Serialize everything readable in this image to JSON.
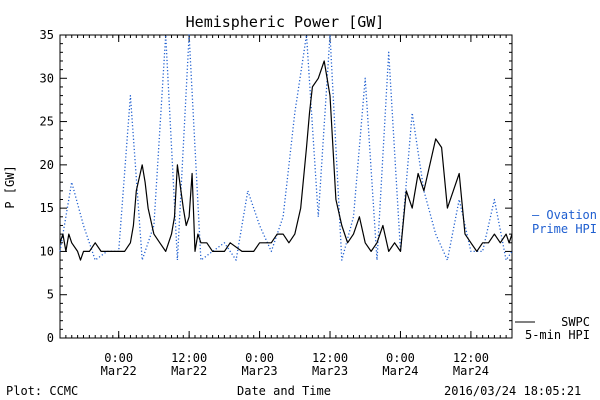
{
  "chart_data": {
    "type": "line",
    "title": "Hemispheric Power [GW]",
    "ylabel": "P [GW]",
    "xlabel": "Date and Time",
    "ylim": [
      0,
      35
    ],
    "yticks": [
      0,
      5,
      10,
      15,
      20,
      25,
      30,
      35
    ],
    "xlim": [
      "2016-03-21T14:00",
      "2016-03-24T19:00"
    ],
    "xticks": [
      {
        "t": "2016-03-22T00:00",
        "time": "0:00",
        "date": "Mar22"
      },
      {
        "t": "2016-03-22T12:00",
        "time": "12:00",
        "date": "Mar22"
      },
      {
        "t": "2016-03-23T00:00",
        "time": "0:00",
        "date": "Mar23"
      },
      {
        "t": "2016-03-23T12:00",
        "time": "12:00",
        "date": "Mar23"
      },
      {
        "t": "2016-03-24T00:00",
        "time": "0:00",
        "date": "Mar24"
      },
      {
        "t": "2016-03-24T12:00",
        "time": "12:00",
        "date": "Mar24"
      }
    ],
    "grid": false,
    "legend_placement": "right",
    "series": [
      {
        "name": "SWPC 5-min HPI",
        "legend_lines": [
          "SWPC",
          "5-min HPI"
        ],
        "color": "#000000",
        "style": "solid",
        "x": [
          "2016-03-21T14:00",
          "2016-03-21T14:30",
          "2016-03-21T15:00",
          "2016-03-21T15:30",
          "2016-03-21T16:00",
          "2016-03-21T17:00",
          "2016-03-21T17:30",
          "2016-03-21T18:00",
          "2016-03-21T19:00",
          "2016-03-21T20:00",
          "2016-03-21T21:00",
          "2016-03-21T23:00",
          "2016-03-22T00:00",
          "2016-03-22T01:00",
          "2016-03-22T02:00",
          "2016-03-22T02:30",
          "2016-03-22T03:00",
          "2016-03-22T04:00",
          "2016-03-22T04:30",
          "2016-03-22T05:00",
          "2016-03-22T06:00",
          "2016-03-22T07:00",
          "2016-03-22T08:00",
          "2016-03-22T09:00",
          "2016-03-22T09:30",
          "2016-03-22T10:00",
          "2016-03-22T11:00",
          "2016-03-22T11:30",
          "2016-03-22T12:00",
          "2016-03-22T12:30",
          "2016-03-22T13:00",
          "2016-03-22T13:30",
          "2016-03-22T14:00",
          "2016-03-22T15:00",
          "2016-03-22T16:00",
          "2016-03-22T18:00",
          "2016-03-22T19:00",
          "2016-03-22T21:00",
          "2016-03-22T22:00",
          "2016-03-22T23:00",
          "2016-03-23T00:00",
          "2016-03-23T01:00",
          "2016-03-23T02:00",
          "2016-03-23T03:00",
          "2016-03-23T04:00",
          "2016-03-23T05:00",
          "2016-03-23T06:00",
          "2016-03-23T07:00",
          "2016-03-23T08:00",
          "2016-03-23T08:30",
          "2016-03-23T09:00",
          "2016-03-23T10:00",
          "2016-03-23T11:00",
          "2016-03-23T12:00",
          "2016-03-23T13:00",
          "2016-03-23T14:00",
          "2016-03-23T15:00",
          "2016-03-23T16:00",
          "2016-03-23T17:00",
          "2016-03-23T18:00",
          "2016-03-23T19:00",
          "2016-03-23T20:00",
          "2016-03-23T21:00",
          "2016-03-23T22:00",
          "2016-03-23T23:00",
          "2016-03-24T00:00",
          "2016-03-24T01:00",
          "2016-03-24T02:00",
          "2016-03-24T03:00",
          "2016-03-24T04:00",
          "2016-03-24T05:00",
          "2016-03-24T06:00",
          "2016-03-24T07:00",
          "2016-03-24T08:00",
          "2016-03-24T09:00",
          "2016-03-24T10:00",
          "2016-03-24T11:00",
          "2016-03-24T12:00",
          "2016-03-24T13:00",
          "2016-03-24T14:00",
          "2016-03-24T15:00",
          "2016-03-24T16:00",
          "2016-03-24T17:00",
          "2016-03-24T18:00",
          "2016-03-24T18:30",
          "2016-03-24T19:00"
        ],
        "values": [
          11,
          12,
          10,
          12,
          11,
          10,
          9,
          10,
          10,
          11,
          10,
          10,
          10,
          10,
          11,
          13,
          17,
          20,
          18,
          15,
          12,
          11,
          10,
          12,
          14,
          20,
          15,
          13,
          14,
          19,
          10,
          12,
          11,
          11,
          10,
          10,
          11,
          10,
          10,
          10,
          11,
          11,
          11,
          12,
          12,
          11,
          12,
          15,
          22,
          26,
          29,
          30,
          32,
          28,
          16,
          13,
          11,
          12,
          14,
          11,
          10,
          11,
          13,
          10,
          11,
          10,
          17,
          15,
          19,
          17,
          20,
          23,
          22,
          15,
          17,
          19,
          12,
          11,
          10,
          11,
          11,
          12,
          11,
          12,
          11,
          12
        ]
      },
      {
        "name": "Ovation Prime HPI",
        "legend_lines": [
          "— Ovation",
          "Prime HPI"
        ],
        "color": "#1f5fd0",
        "style": "dotted",
        "x": [
          "2016-03-21T14:00",
          "2016-03-21T16:00",
          "2016-03-21T18:00",
          "2016-03-21T20:00",
          "2016-03-21T22:00",
          "2016-03-22T00:00",
          "2016-03-22T02:00",
          "2016-03-22T04:00",
          "2016-03-22T06:00",
          "2016-03-22T08:00",
          "2016-03-22T10:00",
          "2016-03-22T12:00",
          "2016-03-22T14:00",
          "2016-03-22T16:00",
          "2016-03-22T18:00",
          "2016-03-22T20:00",
          "2016-03-22T22:00",
          "2016-03-23T00:00",
          "2016-03-23T02:00",
          "2016-03-23T04:00",
          "2016-03-23T06:00",
          "2016-03-23T08:00",
          "2016-03-23T10:00",
          "2016-03-23T12:00",
          "2016-03-23T14:00",
          "2016-03-23T16:00",
          "2016-03-23T18:00",
          "2016-03-23T20:00",
          "2016-03-23T22:00",
          "2016-03-24T00:00",
          "2016-03-24T02:00",
          "2016-03-24T04:00",
          "2016-03-24T06:00",
          "2016-03-24T08:00",
          "2016-03-24T10:00",
          "2016-03-24T12:00",
          "2016-03-24T14:00",
          "2016-03-24T16:00",
          "2016-03-24T18:00",
          "2016-03-24T19:00"
        ],
        "values": [
          10,
          18,
          13,
          9,
          10,
          10,
          28,
          9,
          13,
          35,
          9,
          35,
          9,
          10,
          11,
          9,
          17,
          13,
          10,
          14,
          26,
          35,
          14,
          35,
          9,
          14,
          30,
          9,
          33,
          10,
          26,
          17,
          12,
          9,
          16,
          10,
          10,
          16,
          9,
          10
        ]
      }
    ]
  },
  "footer": {
    "left": "Plot: CCMC",
    "center": "Date and Time",
    "right": "2016/03/24 18:05:21"
  }
}
